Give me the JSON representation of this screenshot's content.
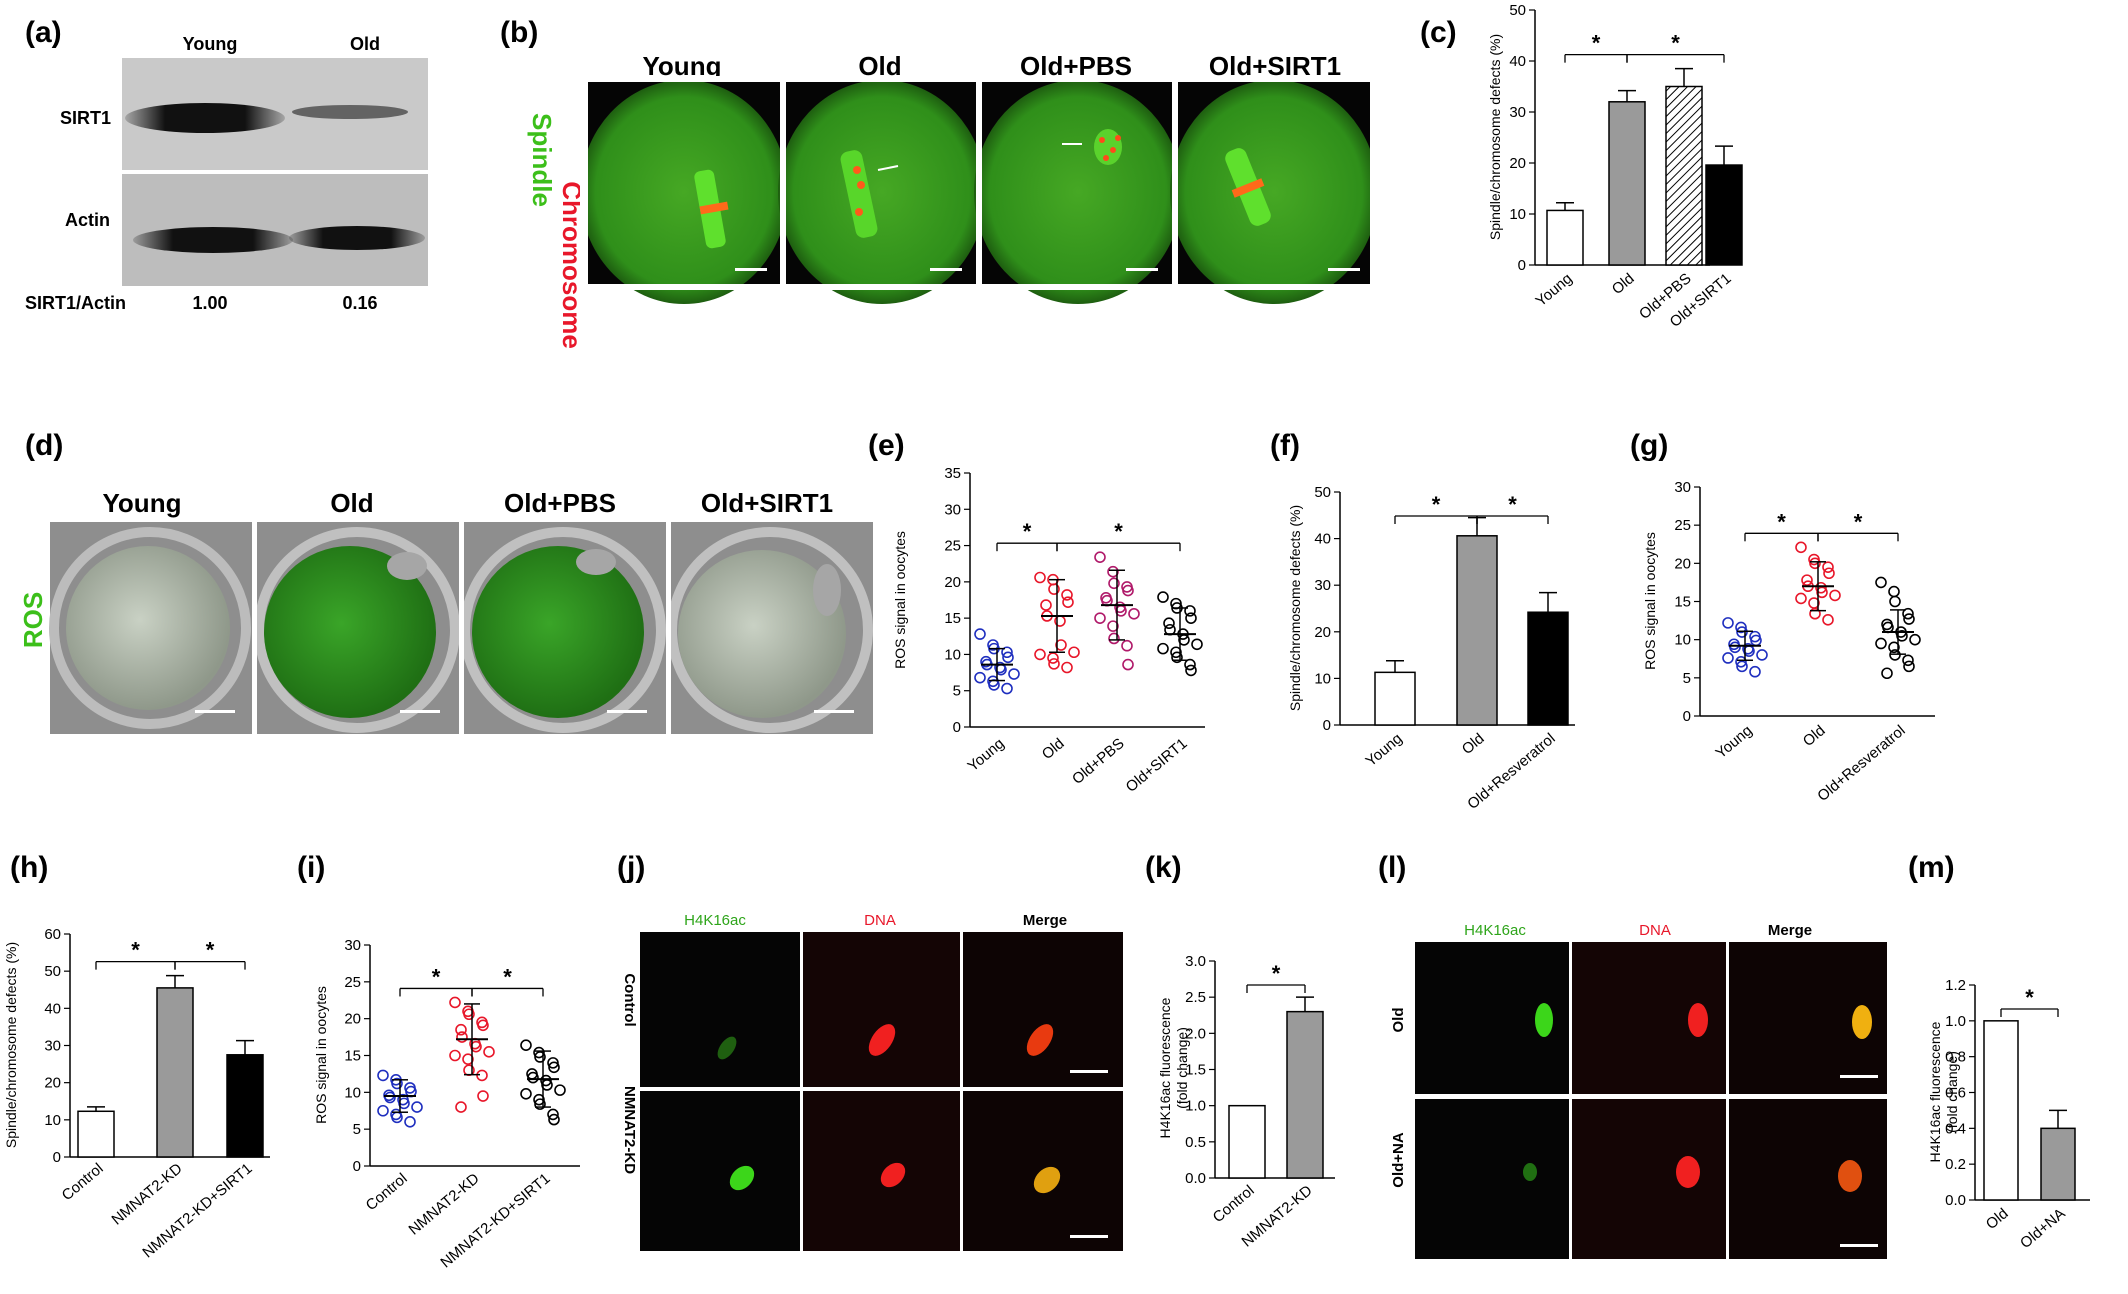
{
  "panel_labels": {
    "a": "(a)",
    "b": "(b)",
    "c": "(c)",
    "d": "(d)",
    "e": "(e)",
    "f": "(f)",
    "g": "(g)",
    "h": "(h)",
    "i": "(i)",
    "j": "(j)",
    "k": "(k)",
    "l": "(l)",
    "m": "(m)"
  },
  "panel_a": {
    "col_young": "Young",
    "col_old": "Old",
    "row_sirt1": "SIRT1",
    "row_actin": "Actin",
    "ratio_label": "SIRT1/Actin",
    "ratio_young": "1.00",
    "ratio_old": "0.16"
  },
  "panel_b": {
    "groups": [
      "Young",
      "Old",
      "Old+PBS",
      "Old+SIRT1"
    ],
    "side_label_chromosome": "Chromosome",
    "side_label_spindle": "Spindle"
  },
  "panel_d": {
    "groups": [
      "Young",
      "Old",
      "Old+PBS",
      "Old+SIRT1"
    ],
    "side_label": "ROS"
  },
  "panel_j": {
    "cols": [
      "H4K16ac",
      "DNA",
      "Merge"
    ],
    "rows": [
      "Control",
      "NMNAT2-KD"
    ]
  },
  "panel_l": {
    "cols": [
      "H4K16ac",
      "DNA",
      "Merge"
    ],
    "rows": [
      "Old",
      "Old+NA"
    ]
  },
  "sig": "*",
  "colors": {
    "green_channel": "#2a8a14",
    "red_channel": "#e8172a",
    "young_blue": "#1f2fbf",
    "old_red": "#e8172a",
    "pbs_magenta": "#b01a6a",
    "black": "#000000",
    "gray_bar": "#9a9a9a"
  },
  "chart_data": [
    {
      "panel": "c",
      "type": "bar",
      "ylabel": "Spindle/chromosome defects (%)",
      "ylim": [
        0,
        50
      ],
      "yticks": [
        0,
        10,
        20,
        30,
        40,
        50
      ],
      "categories": [
        "Young",
        "Old",
        "Old+PBS",
        "Old+SIRT1"
      ],
      "values": [
        10.7,
        32,
        35,
        19.6
      ],
      "errors": [
        1.5,
        2.2,
        3.5,
        3.7
      ],
      "fills": [
        "white",
        "gray",
        "hatched",
        "black"
      ],
      "sig": [
        [
          0,
          1
        ],
        [
          1,
          3
        ]
      ]
    },
    {
      "panel": "e",
      "type": "scatter",
      "ylabel": "ROS signal in oocytes",
      "ylim": [
        0,
        35
      ],
      "yticks": [
        0,
        5,
        10,
        15,
        20,
        25,
        30,
        35
      ],
      "categories": [
        "Young",
        "Old",
        "Old+PBS",
        "Old+SIRT1"
      ],
      "means": [
        8.6,
        15.3,
        16.8,
        12.8
      ],
      "sds": [
        2.2,
        5.0,
        4.8,
        3.6
      ],
      "points": [
        [
          12.8,
          11.3,
          10.8,
          10.3,
          9.6,
          9.0,
          8.6,
          8.2,
          7.9,
          7.3,
          6.8,
          6.3,
          5.8,
          5.3
        ],
        [
          20.6,
          20.3,
          19.0,
          18.2,
          17.2,
          16.8,
          15.3,
          14.6,
          11.3,
          10.3,
          10.0,
          9.5,
          8.7,
          8.2
        ],
        [
          23.4,
          21.4,
          19.8,
          19.3,
          18.8,
          17.8,
          17.4,
          16.5,
          16.0,
          15.6,
          15.0,
          13.9,
          12.2,
          11.2,
          8.6
        ],
        [
          17.9,
          17.0,
          16.4,
          16.0,
          15.0,
          14.3,
          13.4,
          12.8,
          12.0,
          11.4,
          10.8,
          10.3,
          9.6,
          8.6,
          7.8
        ]
      ],
      "sig": [
        [
          0,
          1
        ],
        [
          1,
          3
        ]
      ]
    },
    {
      "panel": "f",
      "type": "bar",
      "ylabel": "Spindle/chromosome defects (%)",
      "ylim": [
        0,
        50
      ],
      "yticks": [
        0,
        10,
        20,
        30,
        40,
        50
      ],
      "categories": [
        "Young",
        "Old",
        "Old+Resveratrol"
      ],
      "values": [
        11.3,
        40.6,
        24.2
      ],
      "errors": [
        2.5,
        3.9,
        4.2
      ],
      "fills": [
        "white",
        "gray",
        "black"
      ],
      "sig": [
        [
          0,
          1
        ],
        [
          1,
          2
        ]
      ]
    },
    {
      "panel": "g",
      "type": "scatter",
      "ylabel": "ROS signal in oocytes",
      "ylim": [
        0,
        30
      ],
      "yticks": [
        0,
        5,
        10,
        15,
        20,
        25,
        30
      ],
      "categories": [
        "Young",
        "Old",
        "Old+Resveratrol"
      ],
      "means": [
        9.2,
        17.0,
        11.0
      ],
      "sds": [
        1.9,
        3.2,
        2.9
      ],
      "points": [
        [
          12.2,
          11.6,
          11.0,
          10.4,
          9.9,
          9.4,
          9.0,
          8.8,
          8.5,
          8.0,
          7.6,
          7.1,
          6.5,
          5.8
        ],
        [
          22.1,
          20.5,
          20.0,
          19.5,
          18.7,
          17.8,
          17.0,
          16.8,
          16.2,
          15.8,
          15.4,
          14.8,
          13.4,
          12.6
        ],
        [
          17.5,
          16.3,
          15.0,
          13.4,
          12.7,
          12.0,
          11.6,
          11.0,
          10.5,
          10.0,
          9.5,
          9.0,
          8.0,
          7.3,
          6.5,
          5.6
        ]
      ],
      "sig": [
        [
          0,
          1
        ],
        [
          1,
          2
        ]
      ]
    },
    {
      "panel": "h",
      "type": "bar",
      "ylabel": "Spindle/chromosome defects (%)",
      "ylim": [
        0,
        60
      ],
      "yticks": [
        0,
        10,
        20,
        30,
        40,
        50,
        60
      ],
      "categories": [
        "Control",
        "NMNAT2-KD",
        "NMNAT2-KD+SIRT1"
      ],
      "values": [
        12.3,
        45.5,
        27.5
      ],
      "errors": [
        1.2,
        3.3,
        3.8
      ],
      "fills": [
        "white",
        "gray",
        "black"
      ],
      "sig": [
        [
          0,
          1
        ],
        [
          1,
          2
        ]
      ]
    },
    {
      "panel": "i",
      "type": "scatter",
      "ylabel": "ROS signal in oocytes",
      "ylim": [
        0,
        30
      ],
      "yticks": [
        0,
        5,
        10,
        15,
        20,
        25,
        30
      ],
      "categories": [
        "Control",
        "NMNAT2-KD",
        "NMNAT2-KD+SIRT1"
      ],
      "means": [
        9.5,
        17.2,
        11.8
      ],
      "sds": [
        2.2,
        4.8,
        3.8
      ],
      "points": [
        [
          12.3,
          11.7,
          11.2,
          10.6,
          10.1,
          9.6,
          9.3,
          9.0,
          8.5,
          8.0,
          7.5,
          7.0,
          6.6,
          6.0
        ],
        [
          22.2,
          21.0,
          20.6,
          19.5,
          19.1,
          18.5,
          17.5,
          16.6,
          16.2,
          15.5,
          15.0,
          14.5,
          13.0,
          12.3,
          9.5,
          8.0
        ],
        [
          16.4,
          15.4,
          14.8,
          14.0,
          13.4,
          12.5,
          12.0,
          11.6,
          11.0,
          10.3,
          9.8,
          9.0,
          8.4,
          7.0,
          6.3
        ]
      ],
      "sig": [
        [
          0,
          1
        ],
        [
          1,
          2
        ]
      ]
    },
    {
      "panel": "k",
      "type": "bar",
      "ylabel": "H4K16ac fluorescence (fold change)",
      "ylim": [
        0,
        3.0
      ],
      "yticks": [
        0.0,
        0.5,
        1.0,
        1.5,
        2.0,
        2.5,
        3.0
      ],
      "categories": [
        "Control",
        "NMNAT2-KD"
      ],
      "values": [
        1.0,
        2.3
      ],
      "errors": [
        0,
        0.2
      ],
      "fills": [
        "white",
        "gray"
      ],
      "sig": [
        [
          0,
          1
        ]
      ]
    },
    {
      "panel": "m",
      "type": "bar",
      "ylabel": "H4K16ac fluorescence (fold change)",
      "ylim": [
        0,
        1.2
      ],
      "yticks": [
        0.0,
        0.2,
        0.4,
        0.6,
        0.8,
        1.0,
        1.2
      ],
      "categories": [
        "Old",
        "Old+NA"
      ],
      "values": [
        1.0,
        0.4
      ],
      "errors": [
        0,
        0.1
      ],
      "fills": [
        "white",
        "gray"
      ],
      "sig": [
        [
          0,
          1
        ]
      ]
    }
  ]
}
